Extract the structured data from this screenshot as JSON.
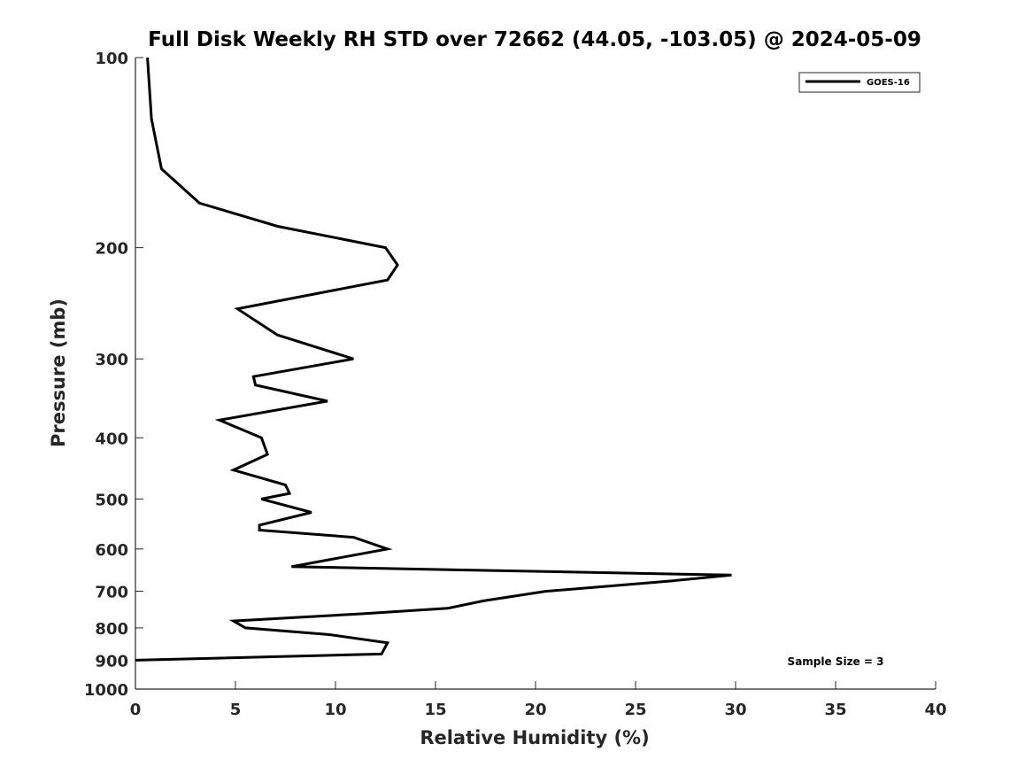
{
  "chart_data": {
    "type": "line",
    "title": "Full Disk Weekly RH STD over 72662 (44.05, -103.05) @ 2024-05-09",
    "xlabel": "Relative Humidity (%)",
    "ylabel": "Pressure (mb)",
    "xlim": [
      0,
      40
    ],
    "ylim": [
      100,
      1000
    ],
    "y_scale": "log",
    "y_reversed": true,
    "x_ticks": [
      0,
      5,
      10,
      15,
      20,
      25,
      30,
      35,
      40
    ],
    "y_ticks": [
      100,
      200,
      300,
      400,
      500,
      600,
      700,
      800,
      900,
      1000
    ],
    "legend_position": "top-right",
    "annotation": "Sample Size = 3",
    "series": [
      {
        "name": "GOES-16",
        "color": "#000000",
        "points": [
          [
            0.6,
            100
          ],
          [
            0.8,
            125
          ],
          [
            1.3,
            150
          ],
          [
            3.2,
            170
          ],
          [
            7.1,
            185
          ],
          [
            12.5,
            200
          ],
          [
            13.1,
            213
          ],
          [
            12.6,
            225
          ],
          [
            5.1,
            250
          ],
          [
            7.1,
            275
          ],
          [
            10.9,
            300
          ],
          [
            5.9,
            320
          ],
          [
            6.0,
            330
          ],
          [
            9.6,
            350
          ],
          [
            4.2,
            375
          ],
          [
            6.3,
            400
          ],
          [
            6.6,
            425
          ],
          [
            4.9,
            450
          ],
          [
            7.5,
            475
          ],
          [
            7.7,
            490
          ],
          [
            6.3,
            500
          ],
          [
            8.8,
            525
          ],
          [
            6.2,
            550
          ],
          [
            6.2,
            560
          ],
          [
            10.9,
            575
          ],
          [
            12.6,
            600
          ],
          [
            7.8,
            640
          ],
          [
            29.8,
            660
          ],
          [
            26.6,
            675
          ],
          [
            20.5,
            700
          ],
          [
            17.4,
            725
          ],
          [
            15.6,
            745
          ],
          [
            11.3,
            760
          ],
          [
            4.9,
            780
          ],
          [
            5.5,
            800
          ],
          [
            9.7,
            820
          ],
          [
            12.6,
            845
          ],
          [
            12.3,
            880
          ],
          [
            0.0,
            900
          ]
        ]
      }
    ]
  }
}
